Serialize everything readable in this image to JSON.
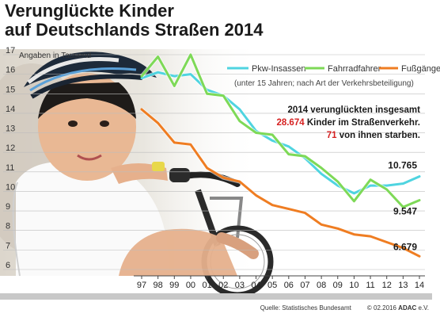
{
  "title_line1": "Verunglückte Kinder",
  "title_line2": "auf Deutschlands Straßen 2014",
  "unit_note": "Angaben in Tausend",
  "legend_note": "(unter 15 Jahren; nach Art der Verkehrsbeteiligung)",
  "info": {
    "line1": "2014 verunglückten insgesamt",
    "total": "28.674",
    "line2_rest": " Kinder im Straßenverkehr.",
    "deaths": "71",
    "line3_rest": " von ihnen starben."
  },
  "footer": {
    "source": "Quelle:  Statistisches Bundesamt",
    "copyright": "© 02.2016",
    "brand": "ADAC",
    "brand_suffix": " e.V."
  },
  "colors": {
    "pkw": "#4fd4e0",
    "fahrrad": "#7ed957",
    "fuss": "#ef7d22",
    "highlight": "#d62020",
    "grid": "#bdbdbd"
  },
  "chart_data": {
    "type": "line",
    "x": [
      "97",
      "98",
      "99",
      "00",
      "01",
      "02",
      "03",
      "04",
      "05",
      "06",
      "07",
      "08",
      "09",
      "10",
      "11",
      "12",
      "13",
      "14"
    ],
    "ylim": [
      6,
      17
    ],
    "yticks": [
      6,
      7,
      8,
      9,
      10,
      11,
      12,
      13,
      14,
      15,
      16,
      17
    ],
    "grid": true,
    "legend_position": "top-right",
    "series": [
      {
        "name": "Pkw-Insassen",
        "color": "#4fd4e0",
        "values": [
          15.8,
          16.1,
          15.9,
          16.0,
          15.2,
          14.9,
          14.2,
          13.1,
          12.6,
          12.3,
          11.7,
          10.9,
          10.3,
          9.9,
          10.3,
          10.3,
          10.4,
          10.765
        ],
        "end_label": "10.765"
      },
      {
        "name": "Fahrradfahrer",
        "color": "#7ed957",
        "values": [
          15.9,
          16.9,
          15.4,
          17.0,
          15.0,
          14.9,
          13.6,
          13.0,
          12.9,
          11.9,
          11.8,
          11.2,
          10.5,
          9.5,
          10.6,
          10.1,
          9.2,
          9.547
        ],
        "end_label": "9.547"
      },
      {
        "name": "Fußgänger",
        "color": "#ef7d22",
        "values": [
          14.2,
          13.5,
          12.5,
          12.4,
          11.2,
          10.7,
          10.5,
          9.8,
          9.3,
          9.1,
          8.9,
          8.3,
          8.1,
          7.8,
          7.7,
          7.4,
          7.1,
          6.679
        ],
        "end_label": "6.679"
      }
    ]
  }
}
